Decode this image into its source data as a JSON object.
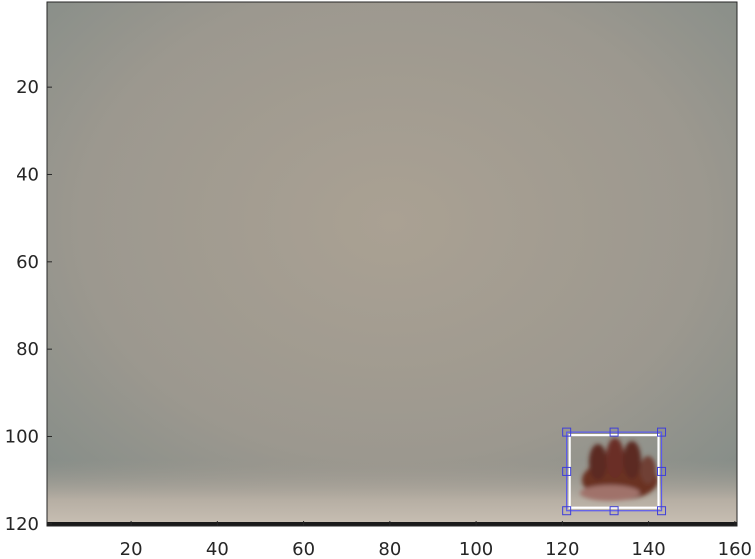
{
  "x_axis": {
    "ticks": [
      20,
      40,
      60,
      80,
      100,
      120,
      140,
      160
    ],
    "range": [
      0.5,
      160.5
    ]
  },
  "y_axis": {
    "ticks": [
      20,
      40,
      60,
      80,
      100,
      120
    ],
    "range": [
      0.5,
      120.5
    ],
    "direction": "reverse"
  },
  "image": {
    "width": 160,
    "height": 120,
    "content": "webcam frame, hand at lower right"
  },
  "roi": {
    "x_min": 121,
    "x_max": 143,
    "y_min": 99,
    "y_max": 117
  },
  "colors": {
    "wall": "#a59d91",
    "roi_outline": "#5a5af0",
    "roi_handle": "#3f3fd9",
    "hand": "#6b3023",
    "axis_text": "#262626"
  }
}
